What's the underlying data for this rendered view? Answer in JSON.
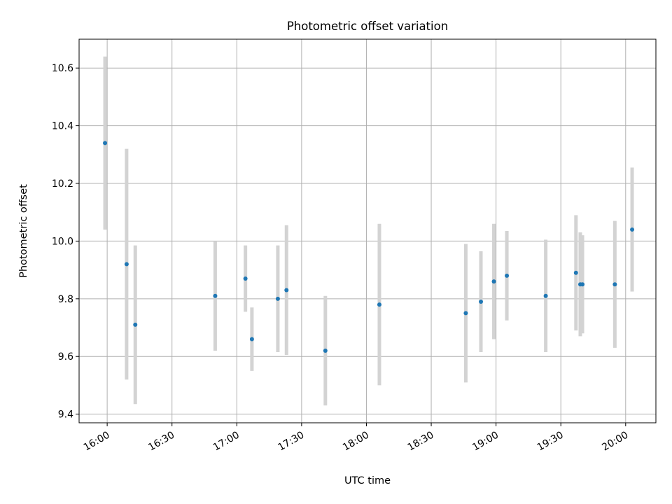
{
  "chart_data": {
    "type": "scatter",
    "title": "Photometric offset variation",
    "xlabel": "UTC time",
    "ylabel": "Photometric offset",
    "x_axis": "time",
    "xlim": [
      "15:47",
      "20:14"
    ],
    "ylim": [
      9.37,
      10.7
    ],
    "x_ticks": [
      "16:00",
      "16:30",
      "17:00",
      "17:30",
      "18:00",
      "18:30",
      "19:00",
      "19:30",
      "20:00"
    ],
    "y_ticks": [
      9.4,
      9.6,
      9.8,
      10.0,
      10.2,
      10.4,
      10.6
    ],
    "y_tick_labels": [
      "9.4",
      "9.6",
      "9.8",
      "10.0",
      "10.2",
      "10.4",
      "10.6"
    ],
    "grid": true,
    "point_color": "#1f77b4",
    "errorbar_color": "#d3d3d3",
    "series": [
      {
        "points": [
          {
            "x": "15:59",
            "y": 10.34,
            "err": 0.3
          },
          {
            "x": "16:09",
            "y": 9.92,
            "err": 0.4
          },
          {
            "x": "16:13",
            "y": 9.71,
            "err": 0.275
          },
          {
            "x": "16:50",
            "y": 9.81,
            "err": 0.19
          },
          {
            "x": "17:04",
            "y": 9.87,
            "err": 0.115
          },
          {
            "x": "17:07",
            "y": 9.66,
            "err": 0.11
          },
          {
            "x": "17:19",
            "y": 9.8,
            "err": 0.185
          },
          {
            "x": "17:23",
            "y": 9.83,
            "err": 0.225
          },
          {
            "x": "17:41",
            "y": 9.62,
            "err": 0.19
          },
          {
            "x": "18:06",
            "y": 9.78,
            "err": 0.28
          },
          {
            "x": "18:46",
            "y": 9.75,
            "err": 0.24
          },
          {
            "x": "18:53",
            "y": 9.79,
            "err": 0.175
          },
          {
            "x": "18:59",
            "y": 9.86,
            "err": 0.2
          },
          {
            "x": "19:05",
            "y": 9.88,
            "err": 0.155
          },
          {
            "x": "19:23",
            "y": 9.81,
            "err": 0.195
          },
          {
            "x": "19:37",
            "y": 9.89,
            "err": 0.2
          },
          {
            "x": "19:39",
            "y": 9.85,
            "err": 0.18
          },
          {
            "x": "19:40",
            "y": 9.85,
            "err": 0.17
          },
          {
            "x": "19:55",
            "y": 9.85,
            "err": 0.22
          },
          {
            "x": "20:03",
            "y": 10.04,
            "err": 0.215
          }
        ]
      }
    ]
  }
}
